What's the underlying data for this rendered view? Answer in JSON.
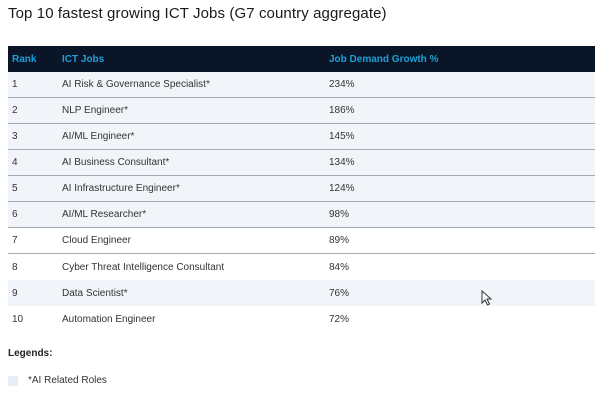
{
  "title": "Top 10 fastest growing ICT Jobs (G7 country aggregate)",
  "table": {
    "headers": [
      "Rank",
      "ICT Jobs",
      "Job Demand Growth %"
    ],
    "rows": [
      {
        "rank": "1",
        "job": "AI Risk & Governance Specialist*",
        "growth": "234%",
        "ai": true
      },
      {
        "rank": "2",
        "job": "NLP Engineer*",
        "growth": "186%",
        "ai": true
      },
      {
        "rank": "3",
        "job": "AI/ML Engineer*",
        "growth": "145%",
        "ai": true
      },
      {
        "rank": "4",
        "job": "AI Business Consultant*",
        "growth": "134%",
        "ai": true
      },
      {
        "rank": "5",
        "job": "AI Infrastructure Engineer*",
        "growth": "124%",
        "ai": true
      },
      {
        "rank": "6",
        "job": "AI/ML Researcher*",
        "growth": "98%",
        "ai": true
      },
      {
        "rank": "7",
        "job": "Cloud Engineer",
        "growth": "89%",
        "ai": false
      },
      {
        "rank": "8",
        "job": "Cyber Threat Intelligence Consultant",
        "growth": "84%",
        "ai": false
      },
      {
        "rank": "9",
        "job": "Data Scientist*",
        "growth": "76%",
        "ai": true
      },
      {
        "rank": "10",
        "job": "Automation Engineer",
        "growth": "72%",
        "ai": false
      }
    ]
  },
  "legend": {
    "title": "Legends:",
    "items": [
      {
        "label": "*AI Related Roles",
        "color": "#e8eef8"
      }
    ]
  },
  "colors": {
    "header_bg": "#0a1628",
    "header_text": "#1ba0d7",
    "ai_row_bg": "#f1f4f9"
  }
}
